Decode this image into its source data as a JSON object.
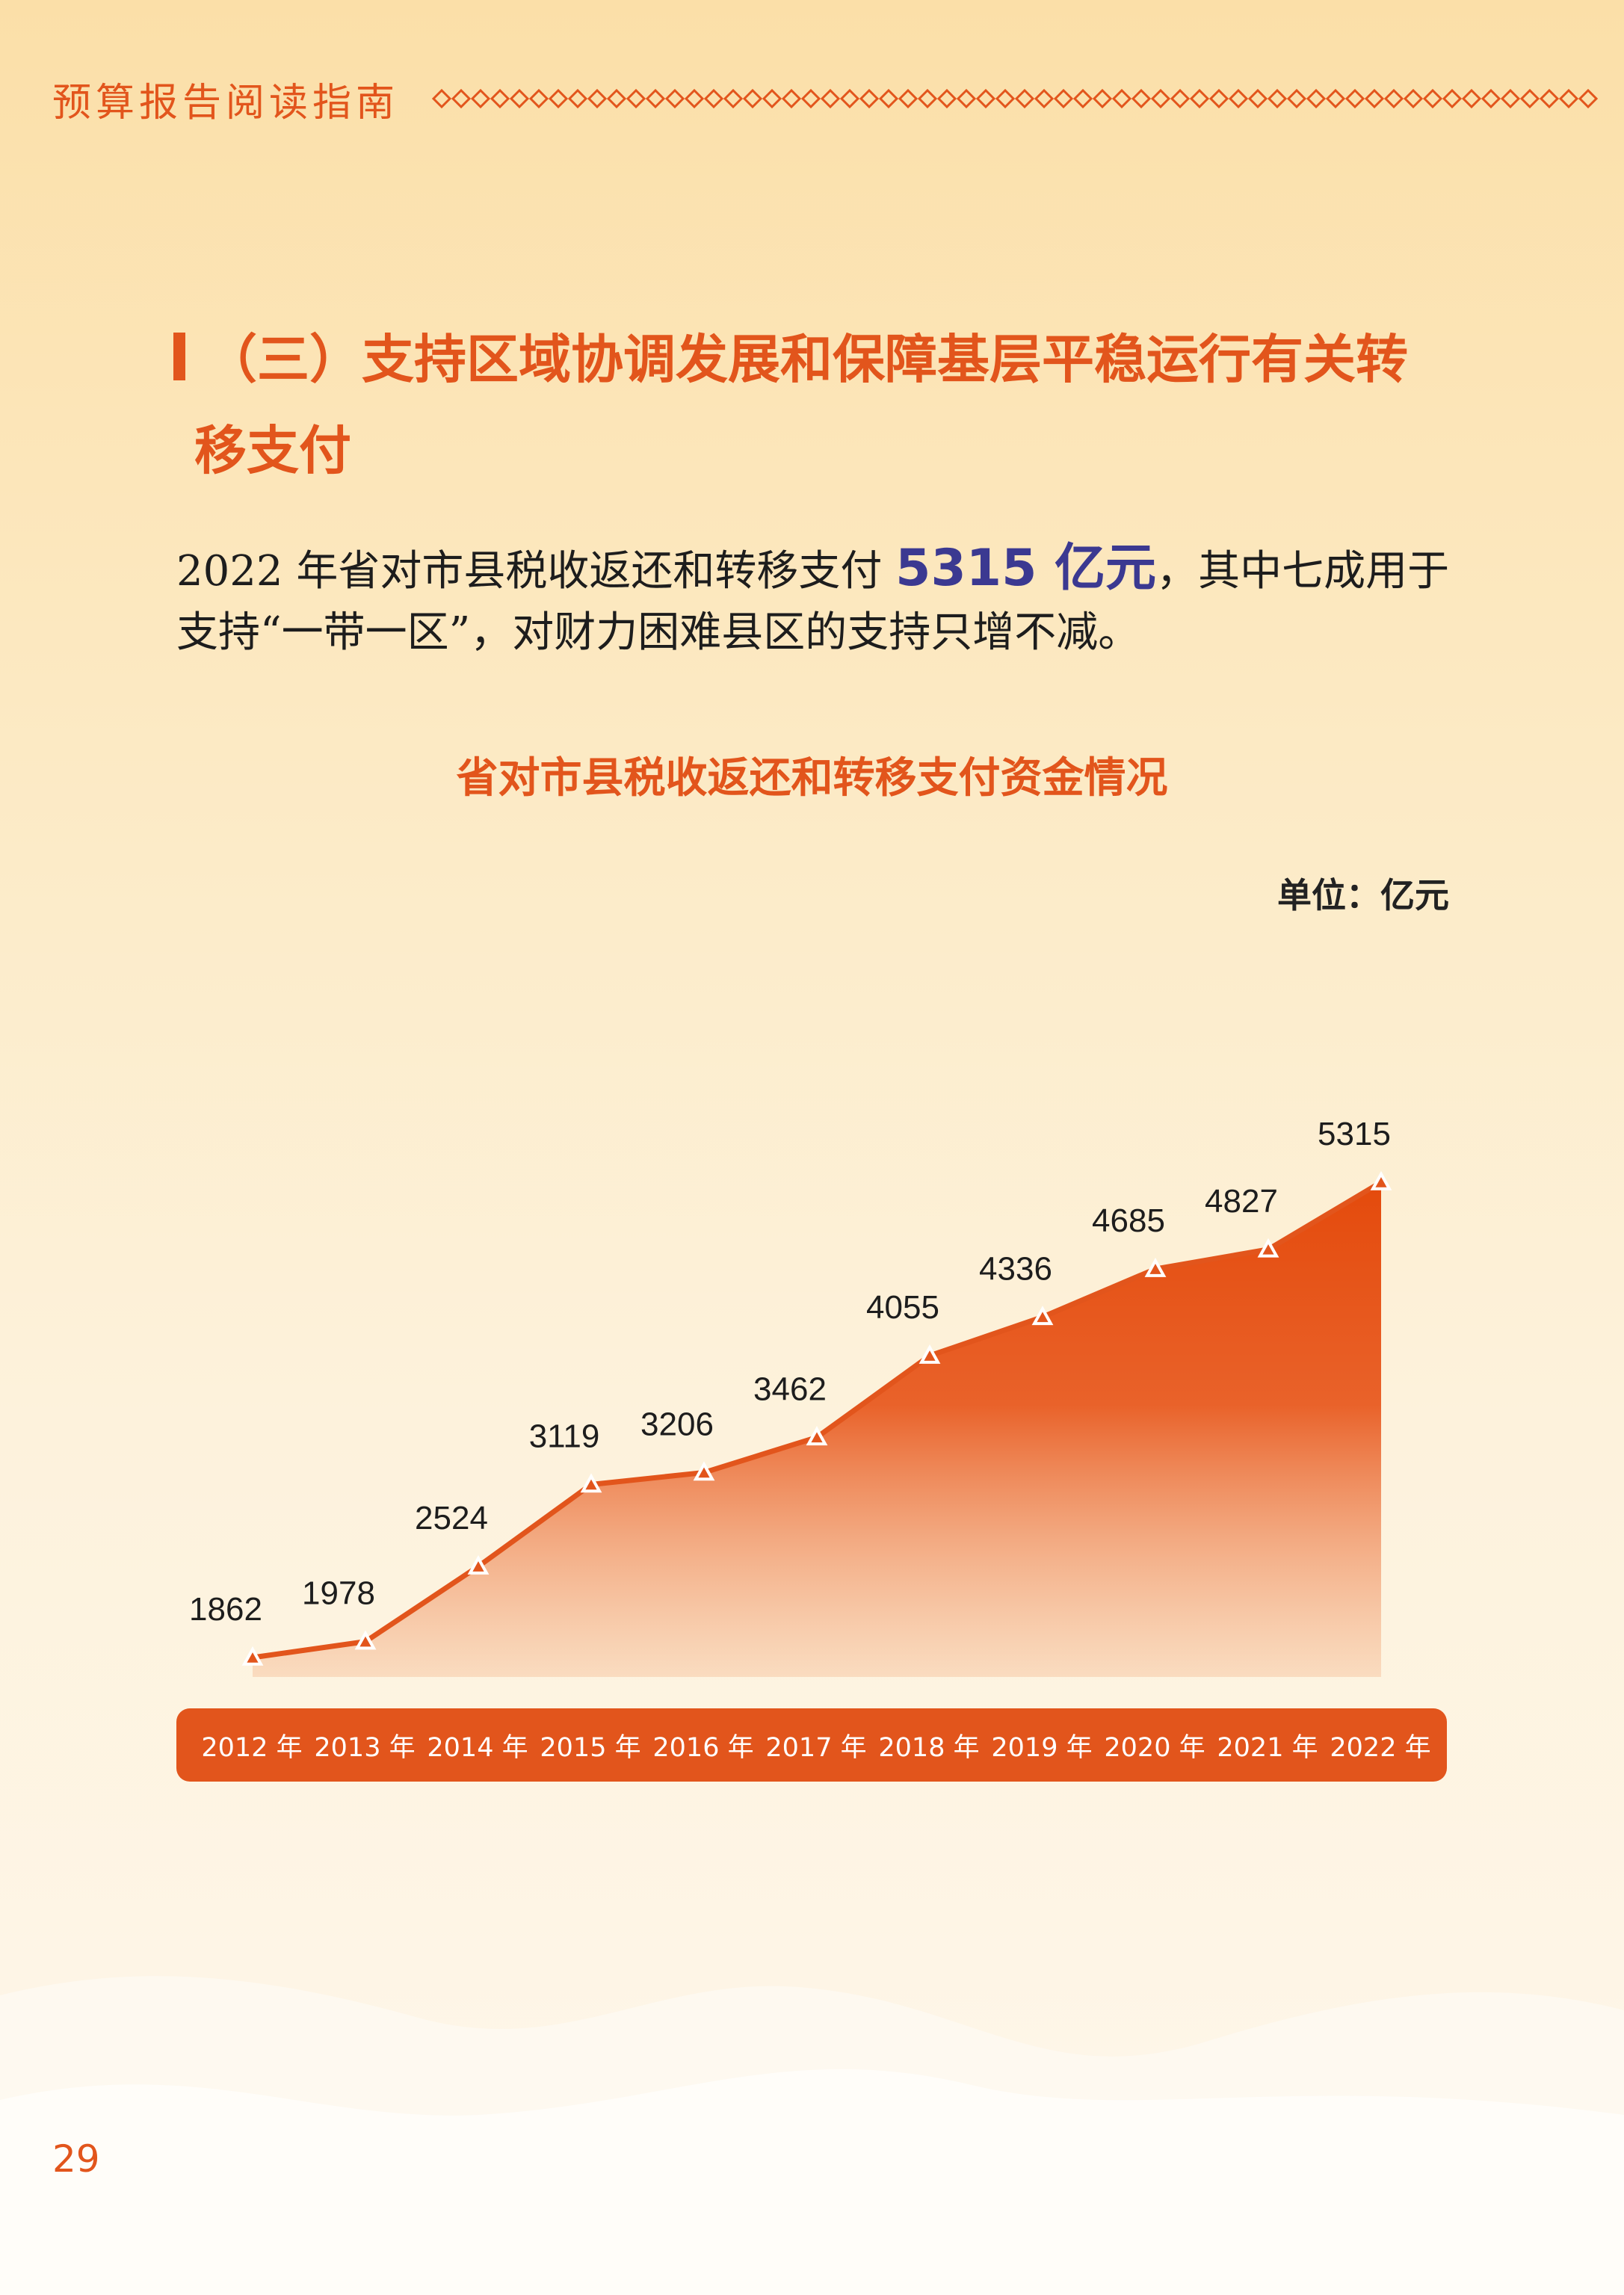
{
  "header": {
    "title": "预算报告阅读指南"
  },
  "section": {
    "title_line1": "（三）支持区域协调发展和保障基层平稳运行有关转",
    "title_line2": "移支付"
  },
  "intro": {
    "part1": "2022 年省对市县税收返还和转移支付 ",
    "highlight": "5315 亿元",
    "part2": "，其中七成用于支持“一带一区”，对财力困难县区的支持只增不减。"
  },
  "chart_data": {
    "type": "area",
    "title": "省对市县税收返还和转移支付资金情况",
    "unit": "单位：亿元",
    "categories": [
      "2012 年",
      "2013 年",
      "2014 年",
      "2015 年",
      "2016 年",
      "2017 年",
      "2018 年",
      "2019 年",
      "2020 年",
      "2021 年",
      "2022 年"
    ],
    "values": [
      1862,
      1978,
      2524,
      3119,
      3206,
      3462,
      4055,
      4336,
      4685,
      4827,
      5315
    ],
    "colors": {
      "line": "#e2551c",
      "fill_top": "#e44a0c",
      "fill_bottom": "#f7c8a4",
      "axis_band": "#e2551c"
    }
  },
  "footer": {
    "page_number": "29"
  }
}
